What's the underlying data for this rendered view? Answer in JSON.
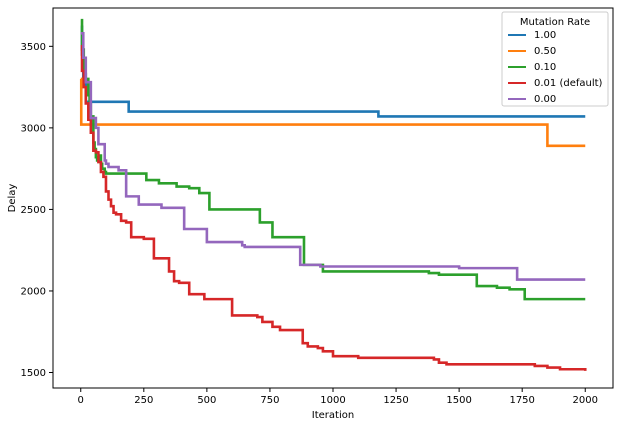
{
  "chart_data": {
    "type": "line",
    "title": "",
    "xlabel": "Iteration",
    "ylabel": "Delay",
    "xlim": [
      -110,
      2110
    ],
    "ylim": [
      1405,
      3735
    ],
    "xticks": [
      0,
      250,
      500,
      750,
      1000,
      1250,
      1500,
      1750,
      2000
    ],
    "yticks": [
      1500,
      2000,
      2500,
      3000,
      3500
    ],
    "grid": false,
    "legend": {
      "title": "Mutation Rate",
      "placement": "top-right"
    },
    "series": [
      {
        "name": "1.00",
        "color": "#1f77b4",
        "drawstyle": "steps-post",
        "x": [
          0,
          5,
          10,
          20,
          190,
          1180,
          2000
        ],
        "y": [
          3620,
          3450,
          3300,
          3160,
          3100,
          3070,
          3070
        ]
      },
      {
        "name": "0.50",
        "color": "#ff7f0e",
        "drawstyle": "steps-post",
        "x": [
          0,
          2,
          1850,
          2000
        ],
        "y": [
          3300,
          3020,
          2890,
          2890
        ]
      },
      {
        "name": "0.10",
        "color": "#2ca02c",
        "drawstyle": "steps-post",
        "x": [
          0,
          5,
          12,
          20,
          30,
          35,
          40,
          50,
          55,
          60,
          65,
          75,
          80,
          85,
          95,
          100,
          120,
          170,
          260,
          310,
          380,
          430,
          470,
          510,
          710,
          760,
          885,
          900,
          960,
          1000,
          1250,
          1380,
          1420,
          1500,
          1570,
          1600,
          1650,
          1700,
          1760,
          2000
        ],
        "y": [
          3660,
          3480,
          3330,
          3300,
          3200,
          3150,
          3070,
          2910,
          2870,
          2820,
          2800,
          2830,
          2780,
          2750,
          2730,
          2720,
          2720,
          2720,
          2680,
          2660,
          2640,
          2630,
          2600,
          2500,
          2420,
          2330,
          2160,
          2160,
          2120,
          2120,
          2120,
          2110,
          2100,
          2100,
          2030,
          2030,
          2020,
          2010,
          1950,
          1950
        ]
      },
      {
        "name": "0.01 (default)",
        "color": "#d62728",
        "drawstyle": "steps-post",
        "x": [
          0,
          5,
          12,
          20,
          30,
          40,
          50,
          60,
          70,
          80,
          90,
          100,
          110,
          120,
          130,
          140,
          160,
          180,
          200,
          250,
          290,
          350,
          370,
          390,
          430,
          490,
          600,
          700,
          720,
          760,
          790,
          830,
          880,
          900,
          940,
          960,
          1000,
          1100,
          1400,
          1420,
          1450,
          1500,
          1800,
          1850,
          1900,
          2000
        ],
        "y": [
          3500,
          3350,
          3250,
          3150,
          3050,
          2970,
          2860,
          2850,
          2790,
          2730,
          2700,
          2610,
          2560,
          2520,
          2480,
          2470,
          2430,
          2420,
          2330,
          2320,
          2200,
          2120,
          2060,
          2050,
          1980,
          1950,
          1850,
          1840,
          1810,
          1780,
          1760,
          1760,
          1680,
          1660,
          1650,
          1630,
          1600,
          1590,
          1580,
          1560,
          1550,
          1550,
          1540,
          1530,
          1520,
          1510
        ]
      },
      {
        "name": "0.00",
        "color": "#9467bd",
        "drawstyle": "steps-post",
        "x": [
          0,
          10,
          20,
          40,
          60,
          70,
          80,
          95,
          100,
          110,
          150,
          180,
          230,
          320,
          410,
          500,
          640,
          650,
          870,
          950,
          1500,
          1730,
          2000
        ],
        "y": [
          3580,
          3430,
          3280,
          3060,
          3000,
          2900,
          2900,
          2800,
          2780,
          2760,
          2740,
          2580,
          2530,
          2510,
          2380,
          2300,
          2280,
          2270,
          2160,
          2150,
          2140,
          2070,
          2070
        ]
      }
    ]
  }
}
